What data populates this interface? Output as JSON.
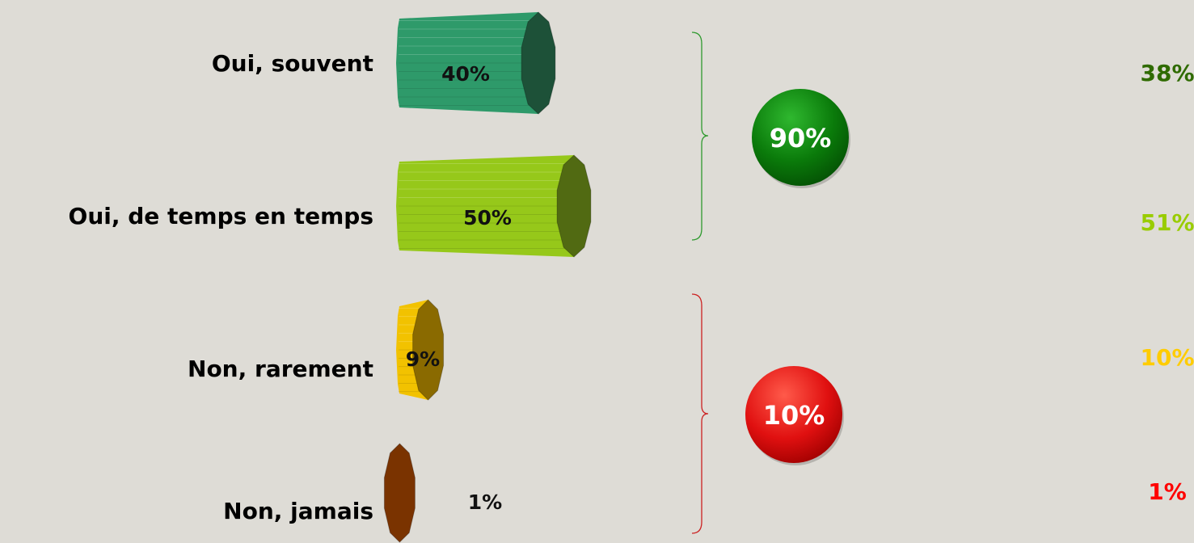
{
  "chart_data": {
    "type": "bar",
    "orientation": "horizontal",
    "categories": [
      "Oui, souvent",
      "Oui, de temps en temps",
      "Non, rarement",
      "Non, jamais"
    ],
    "values": [
      40,
      50,
      9,
      1
    ],
    "value_labels": [
      "40%",
      "50%",
      "9%",
      "1%"
    ],
    "comparison_labels": [
      "38%",
      "51%",
      "10%",
      "1%"
    ],
    "colors": {
      "bars": [
        "#2e9a6a",
        "#96c81a",
        "#f2c200",
        "#c85a10"
      ],
      "bar_ends": [
        "#1d5138",
        "#516a12",
        "#8a6a00",
        "#7a3300"
      ],
      "comparison": [
        "#2f6b00",
        "#99cc00",
        "#ffcc00",
        "#ff0000"
      ],
      "group_yes": "#0a7a0a",
      "group_no": "#e01010",
      "brace_yes": "#2e9a2e",
      "brace_no": "#cc2222"
    },
    "groups": [
      {
        "label": "90%",
        "members": [
          0,
          1
        ],
        "color_key": "yes"
      },
      {
        "label": "10%",
        "members": [
          2,
          3
        ],
        "color_key": "no"
      }
    ]
  }
}
